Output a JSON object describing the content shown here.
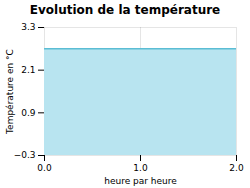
{
  "chart_data": {
    "type": "area",
    "title": "Evolution de la température",
    "xlabel": "heure par heure",
    "ylabel": "Température en °C",
    "x": [
      0,
      2
    ],
    "series": [
      {
        "type": "area",
        "color": "#b8e4f0",
        "values": [
          2.7,
          2.7
        ]
      },
      {
        "type": "line",
        "color": "#5bbdd4",
        "values": [
          2.7,
          2.7
        ]
      }
    ],
    "xlim": [
      0,
      2
    ],
    "xticks": [
      0,
      1,
      2
    ],
    "ylim": [
      -0.3,
      3.3
    ],
    "yticks": [
      -0.3,
      0.9,
      2.1,
      3.3
    ],
    "grid": true
  }
}
